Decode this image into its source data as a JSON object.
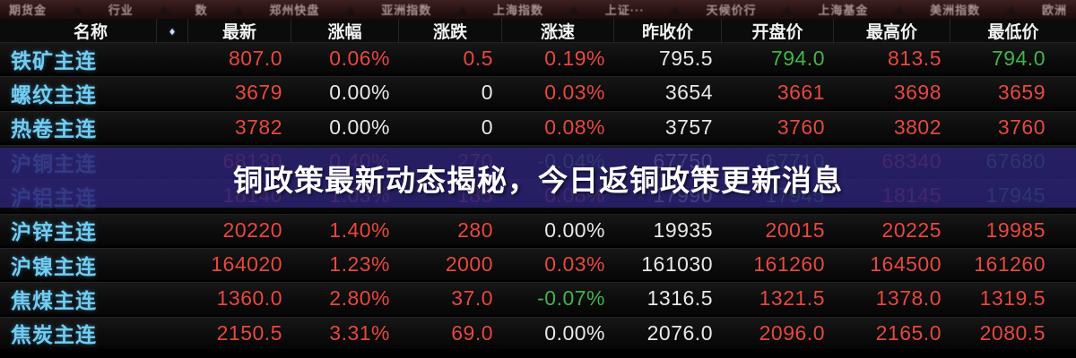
{
  "topbar": {
    "items": [
      "期货金",
      "行业",
      "数",
      "郑州快盘",
      "亚洲指数",
      "上海指数",
      "上证···",
      "天候价行",
      "上海基金",
      "美洲指数",
      "欧洲"
    ]
  },
  "table": {
    "columns": [
      {
        "key": "name",
        "label": "名称"
      },
      {
        "key": "sort",
        "label": "♦"
      },
      {
        "key": "last",
        "label": "最新"
      },
      {
        "key": "chg_pct",
        "label": "涨幅"
      },
      {
        "key": "chg",
        "label": "涨跌"
      },
      {
        "key": "speed",
        "label": "涨速"
      },
      {
        "key": "prev_close",
        "label": "昨收价"
      },
      {
        "key": "open",
        "label": "开盘价"
      },
      {
        "key": "high",
        "label": "最高价"
      },
      {
        "key": "low",
        "label": "最低价"
      }
    ],
    "rows": [
      {
        "name": "铁矿主连",
        "cells": [
          [
            "807.0",
            "up"
          ],
          [
            "0.06%",
            "up"
          ],
          [
            "0.5",
            "up"
          ],
          [
            "0.19%",
            "up"
          ],
          [
            "795.5",
            "flat"
          ],
          [
            "794.0",
            "down"
          ],
          [
            "813.5",
            "up"
          ],
          [
            "794.0",
            "down"
          ]
        ]
      },
      {
        "name": "螺纹主连",
        "cells": [
          [
            "3679",
            "up"
          ],
          [
            "0.00%",
            "flat"
          ],
          [
            "0",
            "flat"
          ],
          [
            "0.03%",
            "up"
          ],
          [
            "3654",
            "flat"
          ],
          [
            "3661",
            "up"
          ],
          [
            "3698",
            "up"
          ],
          [
            "3659",
            "up"
          ]
        ]
      },
      {
        "name": "热卷主连",
        "cells": [
          [
            "3782",
            "up"
          ],
          [
            "0.00%",
            "flat"
          ],
          [
            "0",
            "flat"
          ],
          [
            "0.08%",
            "up"
          ],
          [
            "3757",
            "flat"
          ],
          [
            "3760",
            "up"
          ],
          [
            "3802",
            "up"
          ],
          [
            "3760",
            "up"
          ]
        ]
      },
      {
        "name": "沪铜主连",
        "cells": [
          [
            "68130",
            "up"
          ],
          [
            "0.40%",
            "up"
          ],
          [
            "270",
            "up"
          ],
          [
            "-0.04%",
            "down"
          ],
          [
            "67750",
            "flat"
          ],
          [
            "67710",
            "down"
          ],
          [
            "68340",
            "up"
          ],
          [
            "67680",
            "down"
          ]
        ]
      },
      {
        "name": "沪铝主连",
        "cells": [
          [
            "18140",
            "up"
          ],
          [
            "1.03%",
            "up"
          ],
          [
            "185",
            "up"
          ],
          [
            "0.08%",
            "up"
          ],
          [
            "17990",
            "flat"
          ],
          [
            "17945",
            "down"
          ],
          [
            "18145",
            "up"
          ],
          [
            "17945",
            "down"
          ]
        ]
      },
      {
        "name": "沪锌主连",
        "cells": [
          [
            "20220",
            "up"
          ],
          [
            "1.40%",
            "up"
          ],
          [
            "280",
            "up"
          ],
          [
            "0.00%",
            "flat"
          ],
          [
            "19935",
            "flat"
          ],
          [
            "20015",
            "up"
          ],
          [
            "20225",
            "up"
          ],
          [
            "19985",
            "up"
          ]
        ]
      },
      {
        "name": "沪镍主连",
        "cells": [
          [
            "164020",
            "up"
          ],
          [
            "1.23%",
            "up"
          ],
          [
            "2000",
            "up"
          ],
          [
            "0.03%",
            "up"
          ],
          [
            "161030",
            "flat"
          ],
          [
            "161260",
            "up"
          ],
          [
            "164500",
            "up"
          ],
          [
            "161260",
            "up"
          ]
        ]
      },
      {
        "name": "焦煤主连",
        "cells": [
          [
            "1360.0",
            "up"
          ],
          [
            "2.80%",
            "up"
          ],
          [
            "37.0",
            "up"
          ],
          [
            "-0.07%",
            "down"
          ],
          [
            "1316.5",
            "flat"
          ],
          [
            "1321.5",
            "up"
          ],
          [
            "1378.0",
            "up"
          ],
          [
            "1319.5",
            "up"
          ]
        ]
      },
      {
        "name": "焦炭主连",
        "cells": [
          [
            "2150.5",
            "up"
          ],
          [
            "3.31%",
            "up"
          ],
          [
            "69.0",
            "up"
          ],
          [
            "0.00%",
            "flat"
          ],
          [
            "2076.0",
            "flat"
          ],
          [
            "2096.0",
            "up"
          ],
          [
            "2165.0",
            "up"
          ],
          [
            "2080.5",
            "up"
          ]
        ]
      }
    ]
  },
  "banner": {
    "text": "铜政策最新动态揭秘，今日返铜政策更新消息"
  },
  "colors": {
    "up": "#e8493e",
    "down": "#43b54a",
    "flat": "#e9e9e9",
    "name": "#72cdf0",
    "banner_bg": "#2a2272",
    "topbar_bg": "#2a1313"
  }
}
